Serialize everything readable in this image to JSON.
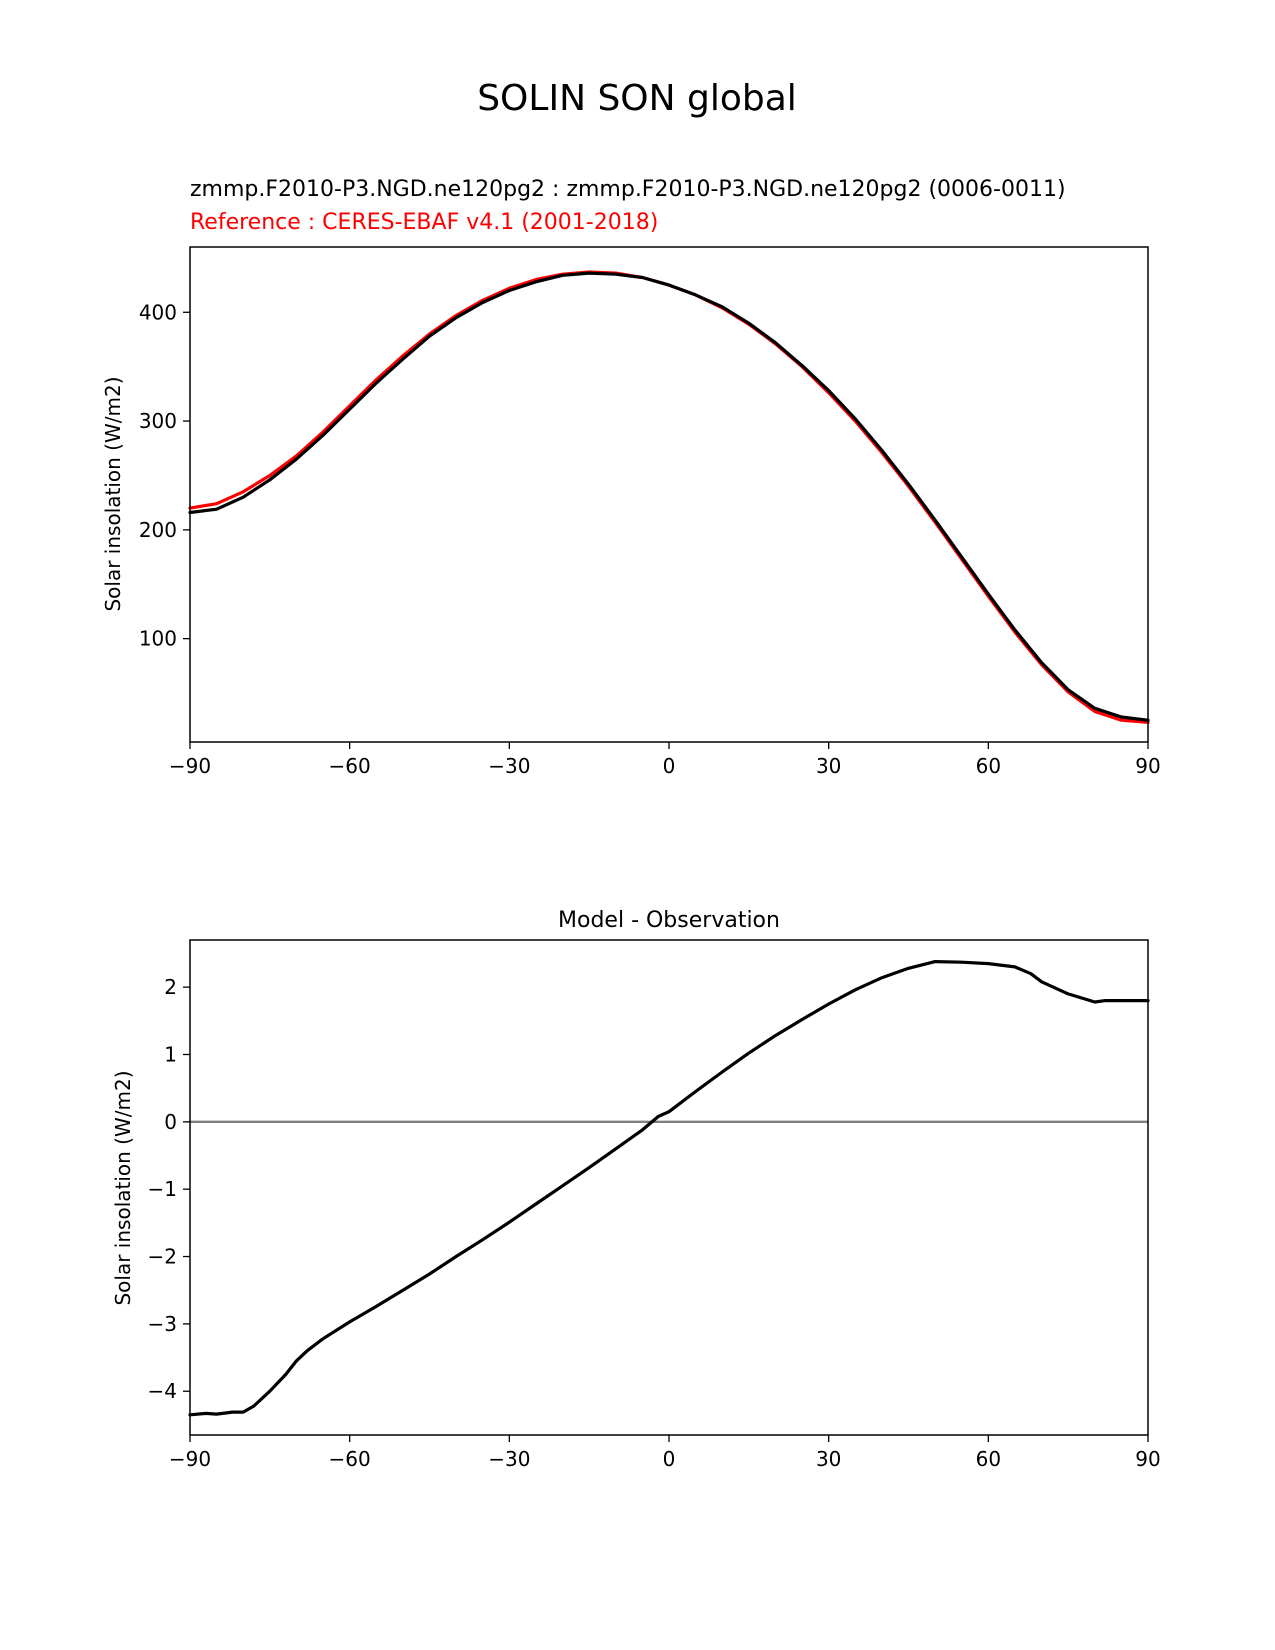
{
  "figure_title": "SOLIN SON global",
  "chart_data": [
    {
      "type": "line",
      "title_left_line1": "zmmp.F2010-P3.NGD.ne120pg2 : zmmp.F2010-P3.NGD.ne120pg2 (0006-0011)",
      "title_left_line2": "Reference : CERES-EBAF v4.1 (2001-2018)",
      "xlabel": "",
      "ylabel": "Solar insolation (W/m2)",
      "xlim": [
        -90,
        90
      ],
      "ylim": [
        5,
        460
      ],
      "xticks": [
        -90,
        -60,
        -30,
        0,
        30,
        60,
        90
      ],
      "xtick_labels": [
        "−90",
        "−60",
        "−30",
        "0",
        "30",
        "60",
        "90"
      ],
      "yticks": [
        100,
        200,
        300,
        400
      ],
      "ytick_labels": [
        "100",
        "200",
        "300",
        "400"
      ],
      "x": [
        -90,
        -85,
        -80,
        -75,
        -70,
        -65,
        -60,
        -55,
        -50,
        -45,
        -40,
        -35,
        -30,
        -25,
        -20,
        -15,
        -10,
        -5,
        0,
        5,
        10,
        15,
        20,
        25,
        30,
        35,
        40,
        45,
        50,
        55,
        60,
        65,
        70,
        75,
        80,
        85,
        90
      ],
      "series": [
        {
          "name": "Reference",
          "color": "#ff0000",
          "values": [
            220,
            224,
            235,
            250,
            268,
            290,
            314,
            338,
            360,
            380,
            397,
            411,
            422,
            430,
            435,
            437,
            436,
            432,
            425,
            416,
            404,
            389,
            371,
            350,
            326,
            300,
            271,
            240,
            207,
            173,
            139,
            106,
            76,
            51,
            33,
            25,
            23
          ]
        },
        {
          "name": "Model",
          "color": "#000000",
          "values": [
            216,
            219,
            230,
            246,
            265,
            287,
            311,
            335,
            357,
            378,
            395,
            409,
            420,
            428,
            434,
            436,
            435,
            432,
            425,
            416,
            405,
            390,
            372,
            351,
            328,
            302,
            273,
            242,
            209,
            175,
            141,
            108,
            78,
            53,
            36,
            28,
            25
          ]
        }
      ]
    },
    {
      "type": "line",
      "title": "Model - Observation",
      "xlabel": "",
      "ylabel": "Solar insolation (W/m2)",
      "xlim": [
        -90,
        90
      ],
      "ylim": [
        -4.65,
        2.7
      ],
      "xticks": [
        -90,
        -60,
        -30,
        0,
        30,
        60,
        90
      ],
      "xtick_labels": [
        "−90",
        "−60",
        "−30",
        "0",
        "30",
        "60",
        "90"
      ],
      "yticks": [
        -4,
        -3,
        -2,
        -1,
        0,
        1,
        2
      ],
      "ytick_labels": [
        "−4",
        "−3",
        "−2",
        "−1",
        "0",
        "1",
        "2"
      ],
      "zero_line_color": "#808080",
      "x": [
        -90,
        -87,
        -85,
        -82,
        -80,
        -78,
        -75,
        -72,
        -70,
        -68,
        -65,
        -60,
        -55,
        -50,
        -45,
        -40,
        -35,
        -30,
        -25,
        -20,
        -15,
        -10,
        -5,
        -2,
        0,
        5,
        10,
        15,
        20,
        25,
        30,
        35,
        40,
        45,
        50,
        55,
        60,
        65,
        68,
        70,
        75,
        80,
        82,
        85,
        88,
        90
      ],
      "series": [
        {
          "name": "Model - Observation",
          "color": "#000000",
          "values": [
            -4.35,
            -4.33,
            -4.34,
            -4.31,
            -4.31,
            -4.22,
            -4.0,
            -3.75,
            -3.55,
            -3.4,
            -3.22,
            -2.97,
            -2.74,
            -2.5,
            -2.26,
            -2.0,
            -1.75,
            -1.49,
            -1.22,
            -0.95,
            -0.68,
            -0.4,
            -0.12,
            0.08,
            0.15,
            0.45,
            0.74,
            1.02,
            1.28,
            1.52,
            1.75,
            1.96,
            2.14,
            2.28,
            2.38,
            2.37,
            2.35,
            2.3,
            2.2,
            2.08,
            1.9,
            1.78,
            1.8,
            1.8,
            1.8,
            1.8
          ]
        }
      ]
    }
  ]
}
